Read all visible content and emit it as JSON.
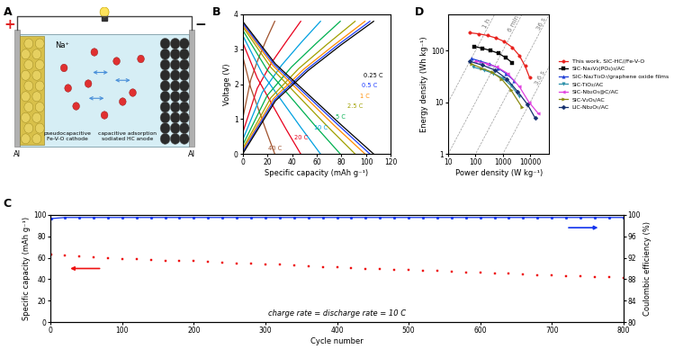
{
  "diagram": {
    "panel": "A",
    "positive": "+",
    "negative": "−",
    "ion": "Na⁺",
    "collectors": [
      "Al",
      "Al"
    ],
    "cathode": "pseudocapacitive\nFe-V-O cathode",
    "anode": "capacitive adsorption\nsodiated HC anode"
  },
  "chart_data": [
    {
      "panel": "B",
      "type": "line",
      "x_label": "Specific capacity (mAh g⁻¹)",
      "y_label": "Voltage (V)",
      "xlim": [
        0,
        120
      ],
      "ylim": [
        0,
        4
      ],
      "xticks": [
        0,
        20,
        40,
        60,
        80,
        100,
        120
      ],
      "yticks": [
        0,
        1,
        2,
        3,
        4
      ],
      "series": [
        {
          "name": "40 C",
          "color": "#a0522d",
          "line_style": "solid",
          "x": [
            0,
            6.5,
            13,
            19.5,
            26,
            null,
            0,
            6.5,
            13,
            19.5,
            26
          ],
          "values": [
            1.0,
            2.12,
            2.76,
            3.3,
            3.8,
            null,
            2.8,
            1.9,
            1.26,
            0.62,
            0
          ]
        },
        {
          "name": "20 C",
          "color": "#e8001c",
          "line_style": "solid",
          "x": [
            0,
            11.8,
            23.5,
            35.3,
            47,
            null,
            0,
            11.8,
            23.5,
            35.3,
            47
          ],
          "values": [
            0.6,
            1.88,
            2.62,
            3.22,
            3.8,
            null,
            3.2,
            2.18,
            1.44,
            0.7,
            0
          ]
        },
        {
          "name": "10 C",
          "color": "#00a0e0",
          "line_style": "solid",
          "x": [
            0,
            15.8,
            31.5,
            47.3,
            63,
            null,
            0,
            15.8,
            31.5,
            47.3,
            63
          ],
          "values": [
            0.4,
            1.76,
            2.54,
            3.19,
            3.8,
            null,
            3.4,
            2.31,
            1.53,
            0.75,
            0
          ]
        },
        {
          "name": "5 C",
          "color": "#00b050",
          "line_style": "solid",
          "x": [
            0,
            19.8,
            39.5,
            59.3,
            79,
            null,
            0,
            19.8,
            39.5,
            59.3,
            79
          ],
          "values": [
            0.25,
            1.67,
            2.49,
            3.16,
            3.8,
            null,
            3.55,
            2.41,
            1.6,
            0.78,
            0
          ]
        },
        {
          "name": "2.5 C",
          "color": "#a0a000",
          "line_style": "solid",
          "x": [
            0,
            22.8,
            45.5,
            68.3,
            91,
            null,
            0,
            22.8,
            45.5,
            68.3,
            91
          ],
          "values": [
            0.15,
            1.61,
            2.45,
            3.14,
            3.8,
            null,
            3.65,
            2.48,
            1.64,
            0.8,
            0
          ]
        },
        {
          "name": "1 C",
          "color": "#ff8c00",
          "line_style": "solid",
          "x": [
            0,
            24.8,
            49.5,
            74.3,
            99,
            null,
            0,
            24.8,
            49.5,
            74.3,
            99
          ],
          "values": [
            0.1,
            1.58,
            2.43,
            3.13,
            3.8,
            null,
            3.7,
            2.52,
            1.67,
            0.81,
            0
          ]
        },
        {
          "name": "0.5 C",
          "color": "#1e3cff",
          "line_style": "solid",
          "x": [
            0,
            25.8,
            51.5,
            77.3,
            103,
            null,
            0,
            25.8,
            51.5,
            77.3,
            103
          ],
          "values": [
            0.05,
            1.55,
            2.41,
            3.13,
            3.8,
            null,
            3.75,
            2.55,
            1.69,
            0.83,
            0
          ]
        },
        {
          "name": "0.25 C",
          "color": "#000000",
          "line_style": "solid",
          "x": [
            0,
            26.5,
            53,
            79.5,
            106,
            null,
            0,
            26.5,
            53,
            79.5,
            106
          ],
          "values": [
            0,
            1.52,
            2.39,
            3.12,
            3.8,
            null,
            3.8,
            2.58,
            1.71,
            0.84,
            0
          ]
        }
      ]
    },
    {
      "panel": "C",
      "type": "line",
      "x_label": "Cycle number",
      "y_label": "Specific capacity (mAh g⁻¹)",
      "y2_label": "Coulombic efficiency (%)",
      "annotations": [
        "charge rate = discharge rate = 10 C"
      ],
      "xlim": [
        0,
        800
      ],
      "ylim": [
        0,
        100
      ],
      "y2lim": [
        80,
        100
      ],
      "xticks": [
        0,
        100,
        200,
        300,
        400,
        500,
        600,
        700,
        800
      ],
      "yticks": [
        0,
        20,
        40,
        60,
        80,
        100
      ],
      "y2ticks": [
        80,
        84,
        88,
        92,
        96,
        100
      ],
      "x": [
        1,
        20,
        40,
        60,
        80,
        100,
        120,
        140,
        160,
        180,
        200,
        220,
        240,
        260,
        280,
        300,
        320,
        340,
        360,
        380,
        400,
        420,
        440,
        460,
        480,
        500,
        520,
        540,
        560,
        580,
        600,
        620,
        640,
        660,
        680,
        700,
        720,
        740,
        760,
        780,
        800
      ],
      "series": [
        {
          "type": "scatter",
          "color": "#ee1111",
          "marker": "square",
          "values": [
            63,
            62,
            61,
            60.5,
            59.5,
            59,
            58.5,
            58,
            57.5,
            57.5,
            57,
            56,
            55.5,
            55,
            54.5,
            54,
            53.5,
            53,
            52,
            51.5,
            51,
            50.5,
            50,
            49.5,
            49,
            48.5,
            48,
            47.5,
            47,
            46.5,
            46,
            45.5,
            45,
            44.5,
            44,
            43.5,
            43,
            42.5,
            42,
            42,
            41.5
          ]
        },
        {
          "type": "line",
          "axis": "y2",
          "color": "#1133ee",
          "marker": "circle",
          "line_style": "solid",
          "values": [
            99.3,
            99.5,
            99.5,
            99.5,
            99.5,
            99.5,
            99.5,
            99.5,
            99.5,
            99.5,
            99.5,
            99.5,
            99.5,
            99.5,
            99.5,
            99.5,
            99.5,
            99.5,
            99.5,
            99.5,
            99.5,
            99.5,
            99.5,
            99.5,
            99.5,
            99.5,
            99.5,
            99.5,
            99.5,
            99.5,
            99.5,
            99.5,
            99.5,
            99.5,
            99.5,
            99.5,
            99.5,
            99.5,
            99.5,
            99.5,
            99.5
          ]
        }
      ]
    },
    {
      "panel": "D",
      "type": "line",
      "log": true,
      "legend": "right",
      "x_label": "Power density (W kg⁻¹)",
      "y_label": "Energy density (Wh kg⁻¹)",
      "xlim": [
        10,
        50000
      ],
      "ylim": [
        1,
        500
      ],
      "xticks": [
        10,
        100,
        1000,
        10000
      ],
      "yticks": [
        1,
        10,
        100
      ],
      "time_lines": [
        {
          "label": "1 h",
          "hours": 1
        },
        {
          "label": "6 min",
          "hours": 0.1
        },
        {
          "label": "36 s",
          "hours": 0.01
        },
        {
          "label": "3.6 s",
          "hours": 0.001
        }
      ],
      "series": [
        {
          "name": "This work, SIC-HC//Fe-V-O",
          "color": "#e8201c",
          "marker": "circle",
          "line_style": "solid",
          "x": [
            60,
            130,
            270,
            550,
            1100,
            2200,
            4000,
            6500,
            9500
          ],
          "values": [
            220,
            210,
            195,
            175,
            150,
            115,
            80,
            50,
            30
          ]
        },
        {
          "name": "SIC-Na₃V₂(PO₄)₃/AC",
          "color": "#000000",
          "marker": "square",
          "line_style": "solid",
          "x": [
            90,
            180,
            350,
            700,
            1300,
            2200
          ],
          "values": [
            120,
            110,
            100,
            88,
            72,
            58
          ]
        },
        {
          "name": "SIC-Na₂Ti₃O₇/graphene oxide films",
          "color": "#1f3fd6",
          "marker": "triangle_up",
          "line_style": "solid",
          "x": [
            70,
            150,
            320,
            650,
            1300,
            2600
          ],
          "values": [
            70,
            62,
            55,
            46,
            36,
            26
          ]
        },
        {
          "name": "SIC-TiO₂/AC",
          "color": "#2a8fa8",
          "marker": "triangle_down",
          "line_style": "solid",
          "x": [
            80,
            200,
            450,
            1000,
            2000,
            4000
          ],
          "values": [
            48,
            42,
            36,
            29,
            21,
            13
          ]
        },
        {
          "name": "SIC-Nb₂O₅@C/AC",
          "color": "#e040e0",
          "marker": "triangle_left",
          "line_style": "solid",
          "x": [
            100,
            250,
            600,
            1500,
            4000,
            9000,
            20000
          ],
          "values": [
            62,
            56,
            48,
            36,
            20,
            10,
            6
          ]
        },
        {
          "name": "SIC-V₂O₅/AC",
          "color": "#8a8a10",
          "marker": "triangle_right",
          "line_style": "solid",
          "x": [
            70,
            160,
            400,
            900,
            2000,
            5000
          ],
          "values": [
            55,
            46,
            38,
            28,
            17,
            8
          ]
        },
        {
          "name": "LIC-Nb₂O₅/AC",
          "color": "#14306e",
          "marker": "diamond",
          "line_style": "solid",
          "x": [
            60,
            180,
            500,
            1400,
            3500,
            8000,
            15000
          ],
          "values": [
            62,
            52,
            42,
            28,
            16,
            9,
            5
          ]
        }
      ]
    }
  ]
}
